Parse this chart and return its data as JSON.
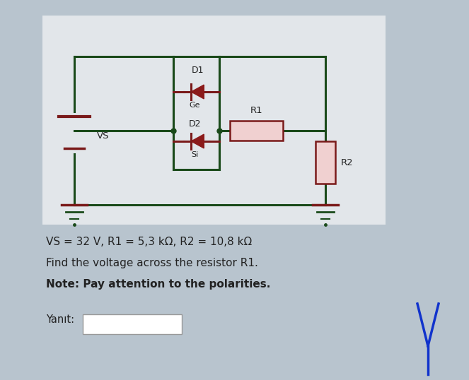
{
  "bg_outer": "#b8c4ce",
  "bg_inner": "#e2e6ea",
  "wire_color": "#5a1a1a",
  "dark_green": "#1a4a1a",
  "resistor_fill": "#f0d0d0",
  "resistor_border": "#7a1a1a",
  "diode_color": "#8b1a1a",
  "text_color": "#222222",
  "label_vs": "VS",
  "label_d1": "D1",
  "label_d2": "D2",
  "label_ge": "Ge",
  "label_si": "Si",
  "label_r1": "R1",
  "label_r2": "R2",
  "text_line1": "VS = 32 V, R1 = 5,3 kΩ, R2 = 10,8 kΩ",
  "text_line2": "Find the voltage across the resistor R1.",
  "text_line3": "Note: Pay attention to the polarities.",
  "text_yanit": "Yanıt:"
}
